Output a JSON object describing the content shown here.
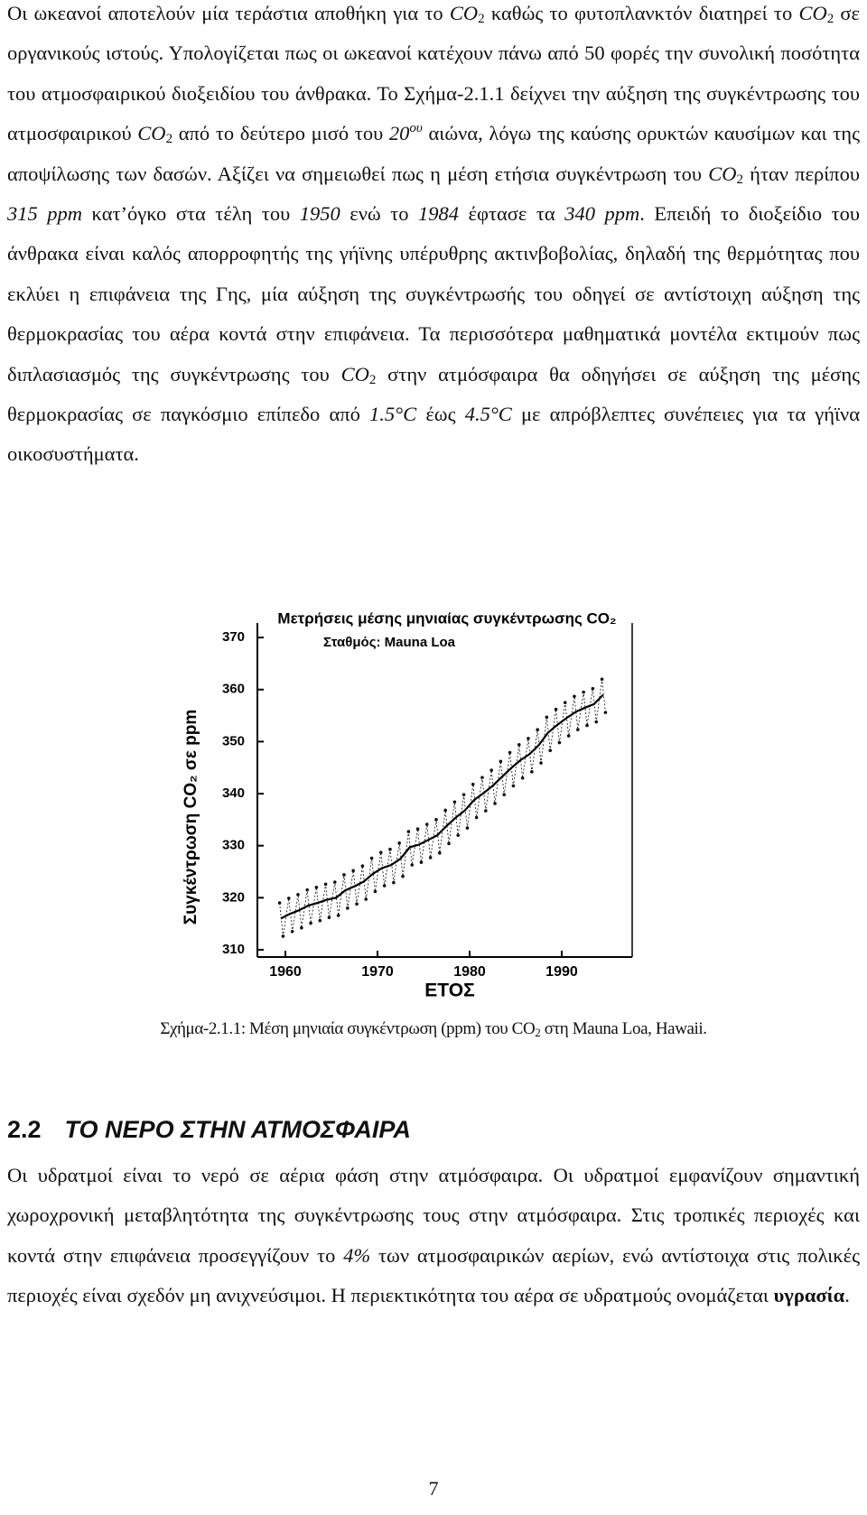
{
  "body": {
    "paragraphs": [
      [
        "Οι ωκεανοί αποτελούν μία τεράστια αποθήκη για το ",
        {
          "t": "CO",
          "s": "i"
        },
        {
          "t": "2",
          "s": "sub"
        },
        " καθώς το φυτοπλανκτόν διατηρεί το ",
        {
          "t": "CO",
          "s": "i"
        },
        {
          "t": "2",
          "s": "sub"
        },
        " σε οργανικούς ιστούς. Υπολογίζεται πως οι ωκεανοί κατέχουν πάνω από 50 φορές την συνολική ποσότητα του ατμοσφαιρικού διοξειδίου του άνθρακα. Το Σχήμα-2.1.1 δείχνει την αύξηση της συγκέντρωσης του ατμοσφαιρικού ",
        {
          "t": "CO",
          "s": "i"
        },
        {
          "t": "2",
          "s": "sub"
        },
        " από το δεύτερο μισό του ",
        {
          "t": "20",
          "s": "i"
        },
        {
          "t": "ου",
          "s": "isup"
        },
        " αιώνα, λόγω της καύσης ορυκτών καυσίμων και της αποψίλωσης των δασών. Αξίζει να σημειωθεί πως η μέση ετήσια συγκέντρωση του ",
        {
          "t": "CO",
          "s": "i"
        },
        {
          "t": "2",
          "s": "sub"
        },
        " ήταν περίπου ",
        {
          "t": "315 ppm",
          "s": "i"
        },
        " κατ’όγκο στα τέλη του ",
        {
          "t": "1950",
          "s": "i"
        },
        " ενώ το ",
        {
          "t": "1984",
          "s": "i"
        },
        " έφτασε τα ",
        {
          "t": "340 ppm",
          "s": "i"
        },
        ". Επειδή το διοξείδιο του άνθρακα είναι καλός απορροφητής της γήϊνης υπέρυθρης ακτινβοβολίας, δηλαδή της θερμότητας που εκλύει η επιφάνεια της Γης, μία αύξηση της συγκέντρωσής του οδηγεί σε αντίστοιχη αύξηση της θερμοκρασίας του αέρα κοντά στην επιφάνεια. Τα περισσότερα μαθηματικά μοντέλα εκτιμούν πως διπλασιασμός της συγκέντρωσης του ",
        {
          "t": "CO",
          "s": "i"
        },
        {
          "t": "2",
          "s": "sub"
        },
        " στην ατμόσφαιρα θα οδηγήσει σε αύξηση της μέσης θερμοκρασίας σε παγκόσμιο επίπεδο από ",
        {
          "t": "1.5°C",
          "s": "i"
        },
        " έως ",
        {
          "t": "4.5°C",
          "s": "i"
        },
        " με απρόβλεπτες συνέπειες για τα γήϊνα οικοσυστήματα."
      ],
      [
        "Οι υδρατμοί είναι το νερό σε αέρια φάση στην ατμόσφαιρα. Οι υδρατμοί εμφανίζουν σημαντική χωροχρονική μεταβλητότητα της συγκέντρωσης τους στην ατμόσφαιρα. Στις τροπικές περιοχές και κοντά στην επιφάνεια προσεγγίζουν το ",
        {
          "t": "4%",
          "s": "i"
        },
        " των ατμοσφαιρικών αερίων, ενώ αντίστοιχα στις πολικές περιοχές είναι σχεδόν μη ανιχνεύσιμοι. Η περιεκτικότητα του αέρα σε υδρατμούς ονομάζεται ",
        {
          "t": "υγρασία",
          "s": "b"
        },
        "."
      ]
    ],
    "caption": [
      "Σχήμα-2.1.1: Μέση μηνιαία συγκέντρωση (ppm) του CO",
      {
        "t": "2",
        "s": "sub"
      },
      " στη Mauna Loa, Hawaii."
    ],
    "heading": {
      "number": "2.2",
      "title": "ΤΟ ΝΕΡΟ ΣΤΗΝ ΑΤΜΟΣΦΑΙΡΑ"
    },
    "page_number": "7"
  },
  "chart_data": {
    "type": "line",
    "title": "Μετρήσεις μέσης μηνιαίας συγκέντρωσης CO₂",
    "annotation": "Σταθμός: Mauna Loa",
    "xlabel": "ΕΤΟΣ",
    "ylabel": "Συγκέντρωση CO₂ σε ppm",
    "xlim": [
      1956.96,
      1997.65
    ],
    "ylim": [
      308.6,
      372.8
    ],
    "xticks": [
      1960,
      1970,
      1980,
      1990
    ],
    "yticks": [
      310,
      320,
      330,
      340,
      350,
      360,
      370
    ],
    "series": [
      {
        "style": "points",
        "color": "#111111",
        "x": [
          1959.37,
          1959.75,
          1960.37,
          1960.75,
          1961.37,
          1961.75,
          1962.37,
          1962.75,
          1963.37,
          1963.75,
          1964.37,
          1964.75,
          1965.37,
          1965.75,
          1966.37,
          1966.75,
          1967.37,
          1967.75,
          1968.37,
          1968.75,
          1969.37,
          1969.75,
          1970.37,
          1970.75,
          1971.37,
          1971.75,
          1972.37,
          1972.75,
          1973.37,
          1973.75,
          1974.37,
          1974.75,
          1975.37,
          1975.75,
          1976.37,
          1976.75,
          1977.37,
          1977.75,
          1978.37,
          1978.75,
          1979.37,
          1979.75,
          1980.37,
          1980.75,
          1981.37,
          1981.75,
          1982.37,
          1982.75,
          1983.37,
          1983.75,
          1984.37,
          1984.75,
          1985.37,
          1985.75,
          1986.37,
          1986.75,
          1987.37,
          1987.75,
          1988.37,
          1988.75,
          1989.37,
          1989.75,
          1990.37,
          1990.75,
          1991.37,
          1991.75,
          1992.37,
          1992.75,
          1993.37,
          1993.75,
          1994.37,
          1994.75
        ],
        "values": [
          319.0,
          312.6,
          319.9,
          313.5,
          320.6,
          314.2,
          321.5,
          315.1,
          322.0,
          315.6,
          322.6,
          316.2,
          323.0,
          316.6,
          324.4,
          318.0,
          325.2,
          318.8,
          326.1,
          319.7,
          327.6,
          321.2,
          328.7,
          322.3,
          329.3,
          322.9,
          330.5,
          324.1,
          332.7,
          326.3,
          333.2,
          326.8,
          334.1,
          327.7,
          335.0,
          328.6,
          336.8,
          330.4,
          338.4,
          332.0,
          339.8,
          333.4,
          341.8,
          335.4,
          343.1,
          336.7,
          344.5,
          338.1,
          346.2,
          339.8,
          347.9,
          341.5,
          349.4,
          343.0,
          350.6,
          344.2,
          352.3,
          345.9,
          354.7,
          348.3,
          356.2,
          349.8,
          357.5,
          351.1,
          358.7,
          352.3,
          359.5,
          353.1,
          360.2,
          353.8,
          362.0,
          355.6
        ]
      },
      {
        "style": "line",
        "color": "#000000",
        "x": [
          1959.5,
          1960.5,
          1961.5,
          1962.5,
          1963.5,
          1964.5,
          1965.5,
          1966.5,
          1967.5,
          1968.5,
          1969.5,
          1970.5,
          1971.5,
          1972.5,
          1973.5,
          1974.5,
          1975.5,
          1976.5,
          1977.5,
          1978.5,
          1979.5,
          1980.5,
          1981.5,
          1982.5,
          1983.5,
          1984.5,
          1985.5,
          1986.5,
          1987.5,
          1988.5,
          1989.5,
          1990.5,
          1991.5,
          1992.5,
          1993.5,
          1994.5
        ],
        "values": [
          316.0,
          316.9,
          317.6,
          318.5,
          319.0,
          319.6,
          320.0,
          321.4,
          322.2,
          323.1,
          324.6,
          325.7,
          326.3,
          327.5,
          329.7,
          330.2,
          331.1,
          332.0,
          333.8,
          335.4,
          336.8,
          338.8,
          340.1,
          341.5,
          343.2,
          344.9,
          346.4,
          347.6,
          349.3,
          351.7,
          353.2,
          354.5,
          355.7,
          356.5,
          357.2,
          359.0
        ]
      }
    ]
  }
}
